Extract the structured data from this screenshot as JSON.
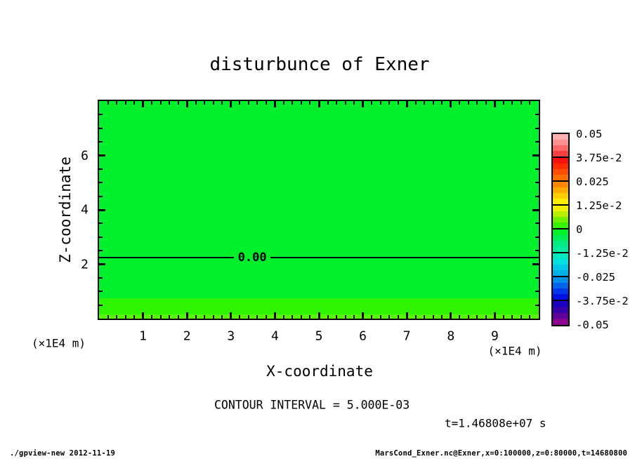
{
  "title": "disturbunce of Exner",
  "footer": {
    "left": "./gpview-new  2012-11-19",
    "right": "MarsCond_Exner.nc@Exner,x=0:100000,z=0:80000,t=14680800"
  },
  "chart_data": {
    "type": "heatmap",
    "subtype": "contour-tone-plot",
    "title": "disturbunce of Exner",
    "xlabel": "X-coordinate",
    "ylabel": "Z-coordinate",
    "x_unit": "(×1E4 m)",
    "y_unit": "(×1E4 m)",
    "xlim": [
      0,
      10
    ],
    "zlim": [
      0,
      8
    ],
    "x_tick_labels": [
      "1",
      "2",
      "3",
      "4",
      "5",
      "6",
      "7",
      "8",
      "9"
    ],
    "x_minor_step": 0.2,
    "z_tick_labels": [
      "2",
      "4",
      "6"
    ],
    "z_minor_step": 0.5,
    "grid": false,
    "contour_interval_text": "CONTOUR INTERVAL = 5.000E-03",
    "time_label": "t=1.46808e+07 s",
    "contour": {
      "label": "0.00",
      "z": 2.245,
      "gap_x": [
        3.07,
        3.9
      ]
    },
    "tone_bands": [
      {
        "z_from": 0.736,
        "z_to": 8.0,
        "color": "#00f12b",
        "value": "≈0 (slightly negative)"
      },
      {
        "z_from": 0.155,
        "z_to": 0.736,
        "color": "#2ff400",
        "value": "≈0 (slightly positive)"
      },
      {
        "z_from": 0.0,
        "z_to": 0.155,
        "color": "#55f800",
        "value": "≈0 (slightly positive)"
      }
    ],
    "colorbar": {
      "position": "right",
      "labels": [
        "0.05",
        "3.75e-2",
        "0.025",
        "1.25e-2",
        "0",
        "-1.25e-2",
        "-0.025",
        "-3.75e-2",
        "-0.05"
      ],
      "boxes": [
        [
          "#ffb0b0",
          "#ff9090",
          "#ff6868",
          "#ff4040"
        ],
        [
          "#ff1010",
          "#ff2c00",
          "#ff4c00",
          "#ff6c00"
        ],
        [
          "#ff8800",
          "#ffaa00",
          "#ffcc00",
          "#ffee00"
        ],
        [
          "#f0f000",
          "#b8ee00",
          "#70f000",
          "#38f300"
        ],
        [
          "#00f128",
          "#00ee55",
          "#00ec80",
          "#00eaa0"
        ],
        [
          "#00e8c0",
          "#00e0e0",
          "#00c8e8",
          "#00b0e8"
        ],
        [
          "#0090e8",
          "#0064e8",
          "#0038e8",
          "#0010e0"
        ],
        [
          "#1c00c0",
          "#3800a8",
          "#600098",
          "#8c0390"
        ]
      ]
    }
  }
}
